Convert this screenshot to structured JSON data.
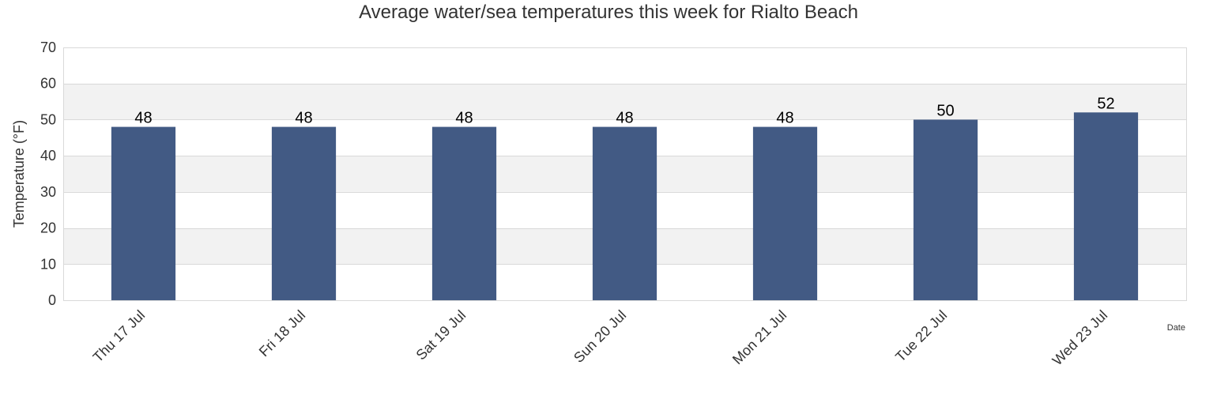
{
  "chart_data": {
    "type": "bar",
    "title": "Average water/sea temperatures this week for Rialto Beach",
    "xlabel": "Date",
    "ylabel": "Temperature (°F)",
    "categories": [
      "Thu 17 Jul",
      "Fri 18 Jul",
      "Sat 19 Jul",
      "Sun 20 Jul",
      "Mon 21 Jul",
      "Tue 22 Jul",
      "Wed 23 Jul"
    ],
    "values": [
      48,
      48,
      48,
      48,
      48,
      50,
      52
    ],
    "data_labels": [
      "48",
      "48",
      "48",
      "48",
      "48",
      "50",
      "52"
    ],
    "ylim": [
      0,
      70
    ],
    "yticks": [
      0,
      10,
      20,
      30,
      40,
      50,
      60,
      70
    ],
    "ytick_labels": [
      "0",
      "10",
      "20",
      "30",
      "40",
      "50",
      "60",
      "70"
    ],
    "grid": true,
    "legend": "none",
    "colors": {
      "bar": "#425a84",
      "band_light": "#ffffff",
      "band_shaded": "#f2f2f2",
      "grid": "#d9d9d9",
      "text": "#333333",
      "label": "#000000"
    }
  }
}
